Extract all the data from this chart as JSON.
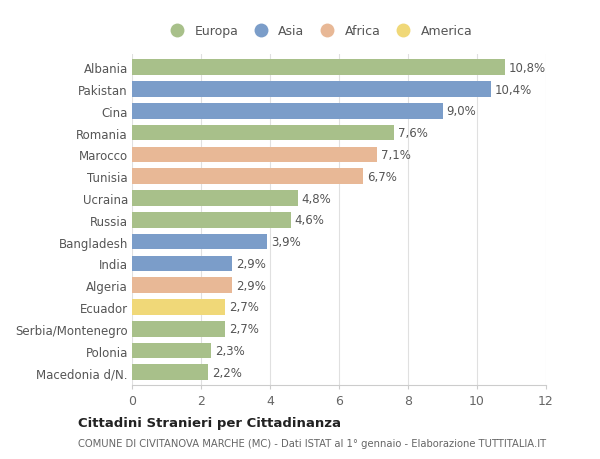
{
  "countries": [
    "Albania",
    "Pakistan",
    "Cina",
    "Romania",
    "Marocco",
    "Tunisia",
    "Ucraina",
    "Russia",
    "Bangladesh",
    "India",
    "Algeria",
    "Ecuador",
    "Serbia/Montenegro",
    "Polonia",
    "Macedonia d/N."
  ],
  "values": [
    10.8,
    10.4,
    9.0,
    7.6,
    7.1,
    6.7,
    4.8,
    4.6,
    3.9,
    2.9,
    2.9,
    2.7,
    2.7,
    2.3,
    2.2
  ],
  "continents": [
    "Europa",
    "Asia",
    "Asia",
    "Europa",
    "Africa",
    "Africa",
    "Europa",
    "Europa",
    "Asia",
    "Asia",
    "Africa",
    "America",
    "Europa",
    "Europa",
    "Europa"
  ],
  "continent_colors": {
    "Europa": "#a8c08a",
    "Asia": "#7b9dc9",
    "Africa": "#e8b896",
    "America": "#f0d878"
  },
  "legend_order": [
    "Europa",
    "Asia",
    "Africa",
    "America"
  ],
  "title": "Cittadini Stranieri per Cittadinanza",
  "subtitle": "COMUNE DI CIVITANOVA MARCHE (MC) - Dati ISTAT al 1° gennaio - Elaborazione TUTTITALIA.IT",
  "xlim": [
    0,
    12
  ],
  "xticks": [
    0,
    2,
    4,
    6,
    8,
    10,
    12
  ],
  "bg_color": "#ffffff",
  "bar_height": 0.72,
  "label_fontsize": 8.5,
  "ytick_fontsize": 8.5,
  "xtick_fontsize": 9
}
